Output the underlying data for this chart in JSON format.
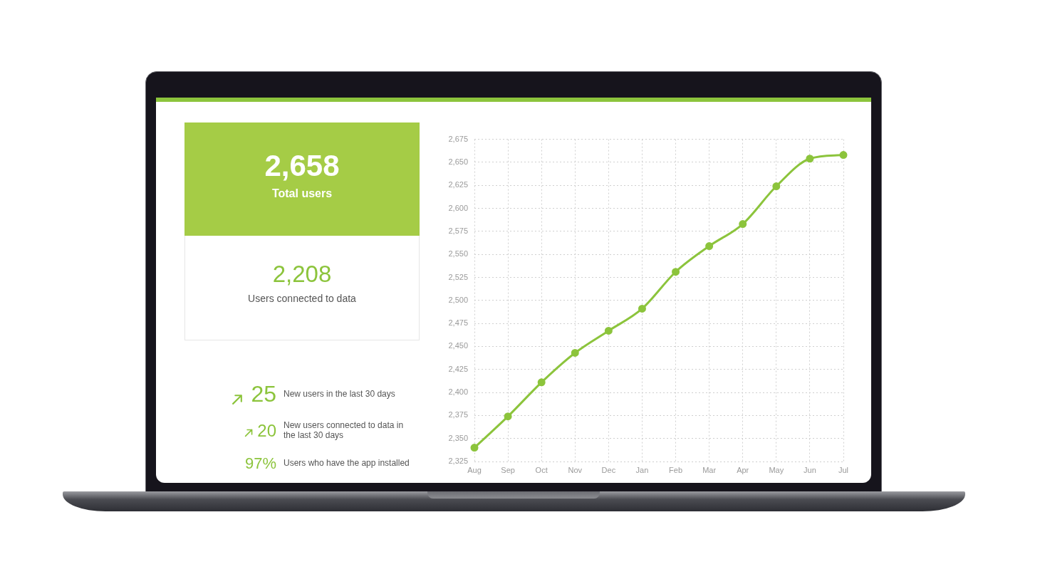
{
  "chart_data": [
    {
      "type": "other",
      "annotations": [
        "2,658",
        "Total users",
        "2,208",
        "Users connected to data",
        "25",
        "New users in the last 30 days",
        "20",
        "New users connected to data in the last 30 days",
        "97%",
        "Users who have the app installed"
      ]
    },
    {
      "type": "line",
      "categories": [
        "Aug",
        "Sep",
        "Oct",
        "Nov",
        "Dec",
        "Jan",
        "Feb",
        "Mar",
        "Apr",
        "May",
        "Jun",
        "Jul"
      ],
      "series": [
        {
          "color": "#8cc43c",
          "values": [
            2340,
            2374,
            2411,
            2443,
            2467,
            2491,
            2531,
            2559,
            2583,
            2624,
            2654,
            2658
          ]
        }
      ],
      "ylim": [
        2325,
        2675
      ],
      "yticks": [
        {
          "value": 2325,
          "label": "2,325"
        },
        {
          "value": 2350,
          "label": "2,350"
        },
        {
          "value": 2375,
          "label": "2,375"
        },
        {
          "value": 2400,
          "label": "2,400"
        },
        {
          "value": 2425,
          "label": "2,425"
        },
        {
          "value": 2450,
          "label": "2,450"
        },
        {
          "value": 2475,
          "label": "2,475"
        },
        {
          "value": 2500,
          "label": "2,500"
        },
        {
          "value": 2525,
          "label": "2,525"
        },
        {
          "value": 2550,
          "label": "2,550"
        },
        {
          "value": 2575,
          "label": "2,575"
        },
        {
          "value": 2600,
          "label": "2,600"
        },
        {
          "value": 2625,
          "label": "2,625"
        },
        {
          "value": 2650,
          "label": "2,650"
        },
        {
          "value": 2675,
          "label": "2,675"
        }
      ],
      "grid": true,
      "marker": "circle"
    }
  ]
}
